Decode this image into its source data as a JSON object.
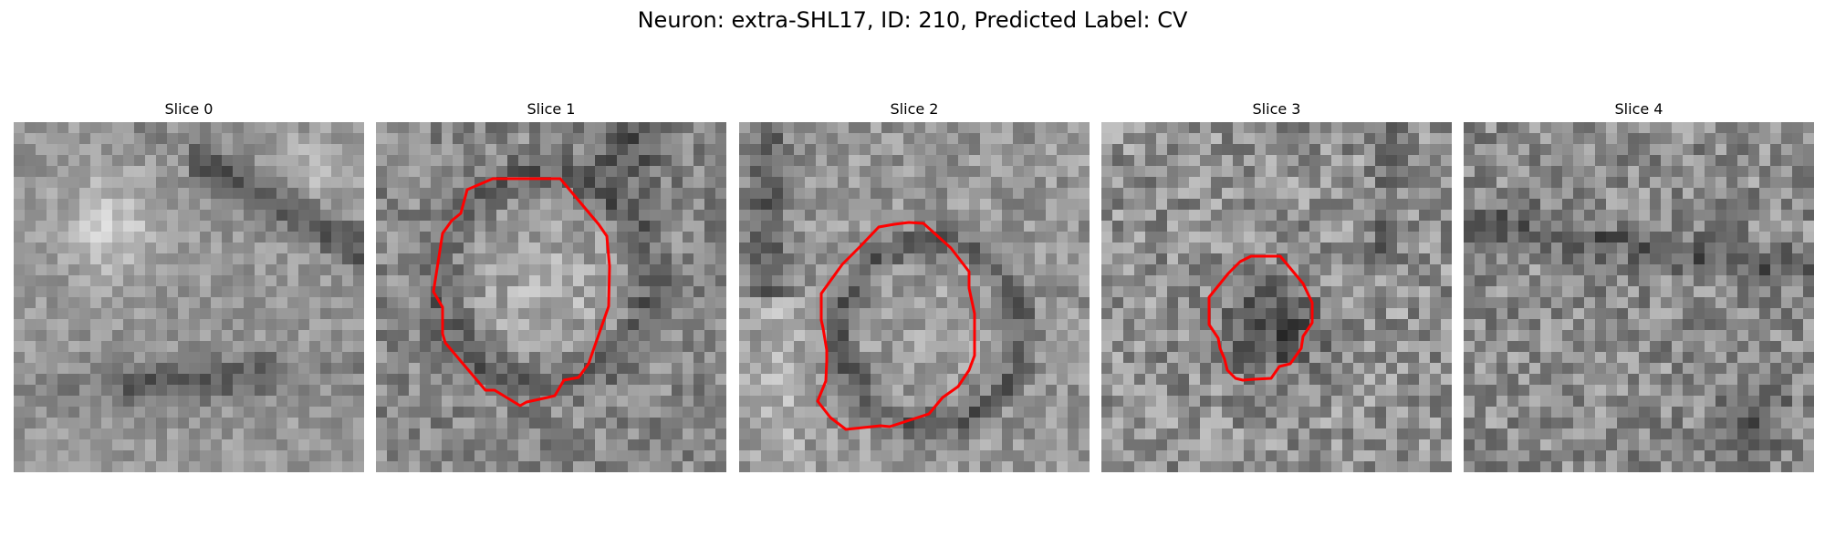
{
  "title": "Neuron: extra-SHL17, ID: 210, Predicted Label: CV",
  "colors": {
    "contour": "#ff0000",
    "background": "#ffffff",
    "colormap": "gray"
  },
  "panels": [
    {
      "label": "Slice 0",
      "has_contour": false
    },
    {
      "label": "Slice 1",
      "has_contour": true
    },
    {
      "label": "Slice 2",
      "has_contour": true
    },
    {
      "label": "Slice 3",
      "has_contour": true
    },
    {
      "label": "Slice 4",
      "has_contour": false
    }
  ]
}
